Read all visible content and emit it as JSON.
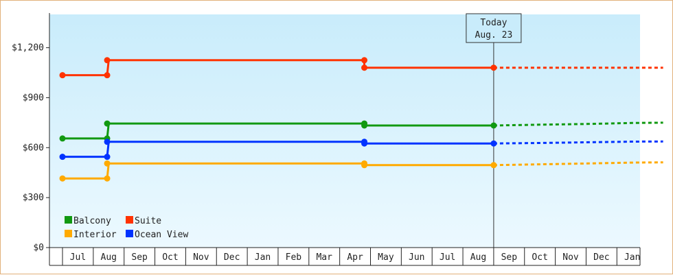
{
  "chart_data": {
    "type": "line",
    "title": "",
    "xlabel": "",
    "ylabel": "",
    "ylim": [
      0,
      1400
    ],
    "y_ticks": [
      {
        "value": 0,
        "label": "$0"
      },
      {
        "value": 300,
        "label": "$300"
      },
      {
        "value": 600,
        "label": "$600"
      },
      {
        "value": 900,
        "label": "$900"
      },
      {
        "value": 1200,
        "label": "$1,200"
      }
    ],
    "x_months": [
      "Jul",
      "Aug",
      "Sep",
      "Oct",
      "Nov",
      "Dec",
      "Jan",
      "Feb",
      "Mar",
      "Apr",
      "May",
      "Jun",
      "Jul",
      "Aug",
      "Sep",
      "Oct",
      "Nov",
      "Dec",
      "Jan"
    ],
    "today": {
      "line1": "Today",
      "line2": "Aug. 23",
      "x": 13.5
    },
    "grid": false,
    "legend_position": "bottom-left",
    "series": [
      {
        "name": "Balcony",
        "color": "#119911",
        "history": [
          [
            -0.5,
            655
          ],
          [
            0.95,
            655
          ],
          [
            1.0,
            745
          ],
          [
            9.3,
            745
          ],
          [
            9.3,
            733
          ],
          [
            13.5,
            733
          ]
        ],
        "points": [
          [
            -0.5,
            655
          ],
          [
            0.95,
            655
          ],
          [
            0.95,
            745
          ],
          [
            9.3,
            745
          ],
          [
            9.3,
            733
          ],
          [
            13.5,
            733
          ]
        ],
        "forecast": [
          [
            13.5,
            733
          ],
          [
            15.0,
            738
          ],
          [
            16.5,
            742
          ],
          [
            18.0,
            748
          ],
          [
            19.0,
            750
          ]
        ]
      },
      {
        "name": "Suite",
        "color": "#ff3300",
        "history": [
          [
            -0.5,
            1035
          ],
          [
            0.95,
            1035
          ],
          [
            1.0,
            1125
          ],
          [
            9.3,
            1125
          ],
          [
            9.3,
            1080
          ],
          [
            13.5,
            1080
          ]
        ],
        "points": [
          [
            -0.5,
            1035
          ],
          [
            0.95,
            1035
          ],
          [
            0.95,
            1125
          ],
          [
            9.3,
            1125
          ],
          [
            9.3,
            1080
          ],
          [
            13.5,
            1080
          ]
        ],
        "forecast": [
          [
            13.5,
            1080
          ],
          [
            19.0,
            1080
          ]
        ]
      },
      {
        "name": "Interior",
        "color": "#ffaa00",
        "history": [
          [
            -0.5,
            415
          ],
          [
            0.95,
            415
          ],
          [
            1.0,
            505
          ],
          [
            9.3,
            505
          ],
          [
            9.3,
            495
          ],
          [
            13.5,
            495
          ]
        ],
        "points": [
          [
            -0.5,
            415
          ],
          [
            0.95,
            415
          ],
          [
            0.95,
            505
          ],
          [
            9.3,
            505
          ],
          [
            9.3,
            495
          ],
          [
            13.5,
            495
          ]
        ],
        "forecast": [
          [
            13.5,
            495
          ],
          [
            15.0,
            500
          ],
          [
            16.5,
            505
          ],
          [
            18.0,
            510
          ],
          [
            19.0,
            512
          ]
        ]
      },
      {
        "name": "Ocean View",
        "color": "#0033ff",
        "history": [
          [
            -0.5,
            545
          ],
          [
            0.95,
            545
          ],
          [
            1.0,
            635
          ],
          [
            9.3,
            635
          ],
          [
            9.3,
            625
          ],
          [
            13.5,
            625
          ]
        ],
        "points": [
          [
            -0.5,
            545
          ],
          [
            0.95,
            545
          ],
          [
            0.95,
            635
          ],
          [
            9.3,
            635
          ],
          [
            9.3,
            625
          ],
          [
            13.5,
            625
          ]
        ],
        "forecast": [
          [
            13.5,
            625
          ],
          [
            15.0,
            628
          ],
          [
            16.5,
            632
          ],
          [
            18.0,
            636
          ],
          [
            19.0,
            637
          ]
        ]
      }
    ],
    "legend": [
      {
        "name": "Balcony",
        "color": "#119911"
      },
      {
        "name": "Suite",
        "color": "#ff3300"
      },
      {
        "name": "Interior",
        "color": "#ffaa00"
      },
      {
        "name": "Ocean View",
        "color": "#0033ff"
      }
    ]
  }
}
